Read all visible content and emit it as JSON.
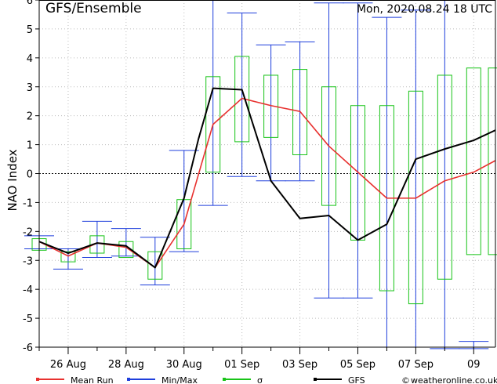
{
  "header": {
    "title": "GFS/Ensemble",
    "run_time": "Mon, 2020.08.24   18 UTC"
  },
  "colors": {
    "mean": "#e8312f",
    "minmax": "#1f3fdc",
    "sigma": "#19c419",
    "gfs": "#000000",
    "zero_line": "#000000",
    "grid": "#bdbdbd"
  },
  "chart_data": {
    "type": "line",
    "title": "GFS/Ensemble",
    "ylabel": "NAO Index",
    "xlabel": "",
    "ylim": [
      -6,
      6
    ],
    "xlim": [
      0,
      15.75
    ],
    "yticks": [
      -6,
      -5,
      -4,
      -3,
      -2,
      -1,
      0,
      1,
      2,
      3,
      4,
      5,
      6
    ],
    "x_tick_labels": [
      {
        "x": 1,
        "label": "26 Aug"
      },
      {
        "x": 3,
        "label": "28 Aug"
      },
      {
        "x": 5,
        "label": "30 Aug"
      },
      {
        "x": 7,
        "label": "01 Sep"
      },
      {
        "x": 9,
        "label": "03 Sep"
      },
      {
        "x": 11,
        "label": "05 Sep"
      },
      {
        "x": 13,
        "label": "07 Sep"
      },
      {
        "x": 15,
        "label": "09"
      }
    ],
    "x_minor_ticks": [
      0,
      2,
      4,
      6,
      8,
      10,
      12,
      14
    ],
    "grid": true,
    "zero_line": true,
    "legend_placement": "bottom",
    "series": [
      {
        "name": "Mean Run",
        "key": "mean",
        "x": [
          0,
          1,
          2,
          3,
          4,
          5,
          6,
          7,
          8,
          9,
          10,
          11,
          12,
          13,
          14,
          15,
          15.75
        ],
        "values": [
          -2.35,
          -2.85,
          -2.4,
          -2.55,
          -3.25,
          -1.75,
          1.7,
          2.6,
          2.35,
          2.15,
          0.95,
          0.05,
          -0.85,
          -0.85,
          -0.25,
          0.05,
          0.45
        ]
      },
      {
        "name": "GFS",
        "key": "gfs",
        "x": [
          0,
          1,
          2,
          3,
          4,
          5,
          5.5,
          6,
          7,
          8,
          9,
          10,
          11,
          12,
          13,
          14,
          15,
          15.75
        ],
        "values": [
          -2.35,
          -2.75,
          -2.4,
          -2.5,
          -3.25,
          -0.85,
          1.2,
          2.95,
          2.9,
          -0.25,
          -1.55,
          -1.45,
          -2.3,
          -1.75,
          0.5,
          0.85,
          1.15,
          1.5
        ]
      }
    ],
    "minmax": {
      "name": "Min/Max",
      "x": [
        0,
        1,
        2,
        3,
        4,
        5,
        6,
        7,
        8,
        9,
        10,
        11,
        12,
        13,
        14,
        15
      ],
      "min": [
        -2.6,
        -3.3,
        -2.9,
        -2.85,
        -3.85,
        -2.7,
        -1.1,
        -0.1,
        -0.25,
        -0.25,
        -4.3,
        -4.3,
        -6.0,
        -6.0,
        -6.05,
        -6.05
      ],
      "max": [
        -2.15,
        -2.6,
        -1.65,
        -1.9,
        -2.2,
        0.8,
        6.0,
        5.55,
        4.45,
        4.55,
        5.9,
        5.9,
        5.4,
        5.65,
        6.1,
        -5.8
      ]
    },
    "sigma": {
      "name": "σ",
      "x": [
        0,
        1,
        2,
        3,
        4,
        5,
        6,
        7,
        8,
        9,
        10,
        11,
        12,
        13,
        14,
        15,
        15.75
      ],
      "low": [
        -2.65,
        -3.05,
        -2.75,
        -2.9,
        -3.65,
        -2.6,
        0.05,
        1.1,
        1.25,
        0.65,
        -1.1,
        -2.3,
        -4.05,
        -4.5,
        -3.65,
        -2.8,
        -2.8
      ],
      "high": [
        -2.25,
        -2.7,
        -2.15,
        -2.35,
        -2.7,
        -0.9,
        3.35,
        4.05,
        3.4,
        3.6,
        3.0,
        2.35,
        2.35,
        2.85,
        3.4,
        3.65,
        3.65
      ]
    }
  },
  "legend": [
    {
      "key": "mean",
      "label": "Mean Run"
    },
    {
      "key": "minmax",
      "label": "Min/Max"
    },
    {
      "key": "sigma",
      "label": "σ"
    },
    {
      "key": "gfs",
      "label": "GFS"
    }
  ],
  "footer": {
    "copyright_glyph": "©",
    "credit": "weatheronline.co.uk"
  }
}
